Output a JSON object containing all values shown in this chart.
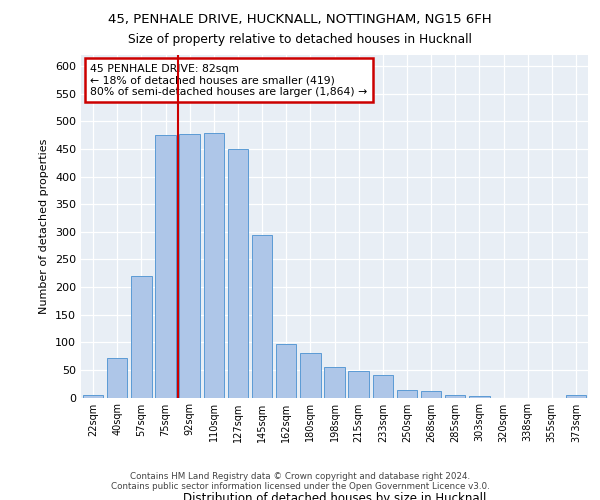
{
  "title_line1": "45, PENHALE DRIVE, HUCKNALL, NOTTINGHAM, NG15 6FH",
  "title_line2": "Size of property relative to detached houses in Hucknall",
  "xlabel": "Distribution of detached houses by size in Hucknall",
  "ylabel": "Number of detached properties",
  "categories": [
    "22sqm",
    "40sqm",
    "57sqm",
    "75sqm",
    "92sqm",
    "110sqm",
    "127sqm",
    "145sqm",
    "162sqm",
    "180sqm",
    "198sqm",
    "215sqm",
    "233sqm",
    "250sqm",
    "268sqm",
    "285sqm",
    "303sqm",
    "320sqm",
    "338sqm",
    "355sqm",
    "373sqm"
  ],
  "values": [
    4,
    72,
    220,
    475,
    477,
    479,
    450,
    295,
    96,
    80,
    55,
    48,
    41,
    13,
    12,
    4,
    3,
    0,
    0,
    0,
    4
  ],
  "bar_color": "#aec6e8",
  "bar_edge_color": "#5b9bd5",
  "vline_color": "#cc0000",
  "vline_position": 3.5,
  "annotation_text": "45 PENHALE DRIVE: 82sqm\n← 18% of detached houses are smaller (419)\n80% of semi-detached houses are larger (1,864) →",
  "annotation_box_facecolor": "#ffffff",
  "annotation_box_edgecolor": "#cc0000",
  "ylim": [
    0,
    620
  ],
  "yticks": [
    0,
    50,
    100,
    150,
    200,
    250,
    300,
    350,
    400,
    450,
    500,
    550,
    600
  ],
  "bg_color": "#e8eef5",
  "footer_line1": "Contains HM Land Registry data © Crown copyright and database right 2024.",
  "footer_line2": "Contains public sector information licensed under the Open Government Licence v3.0."
}
